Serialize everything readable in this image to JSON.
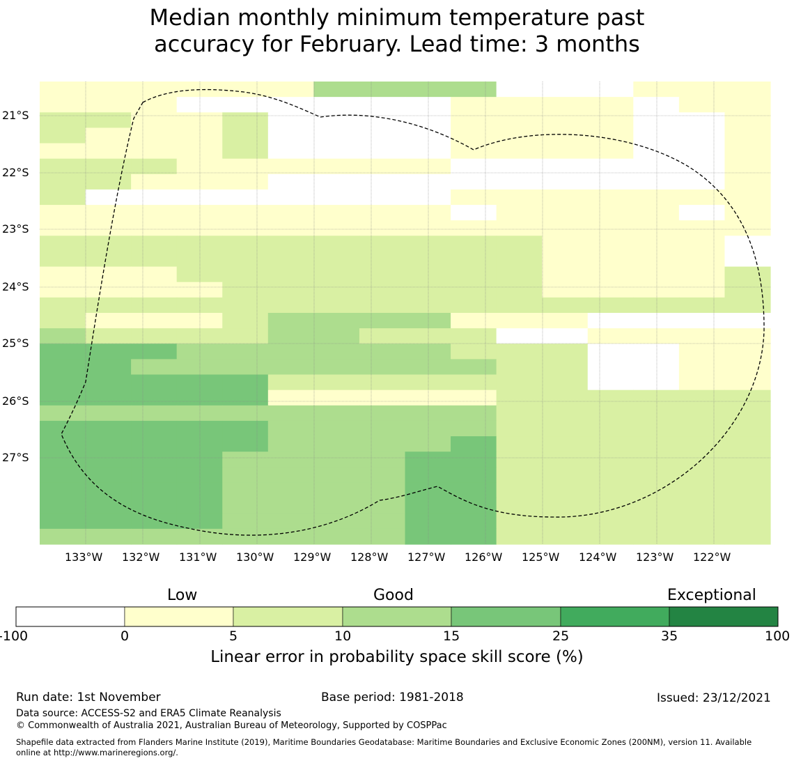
{
  "title_lines": [
    "Median monthly minimum temperature past",
    "accuracy for February. Lead time: 3 months"
  ],
  "map": {
    "lon_labels": [
      "133°W",
      "132°W",
      "131°W",
      "130°W",
      "129°W",
      "128°W",
      "127°W",
      "126°W",
      "125°W",
      "124°W",
      "123°W",
      "122°W"
    ],
    "lat_labels": [
      "21°S",
      "22°S",
      "23°S",
      "24°S",
      "25°S",
      "26°S",
      "27°S"
    ],
    "category_colors": [
      "#ffffff",
      "#ffffcc",
      "#d9f0a3",
      "#addd8e",
      "#78c679",
      "#41ab5d",
      "#238443"
    ],
    "grid_legend": "0=<0, 1=0-5, 2=5-10, 3=10-15, 4=15-25, 5=25-35, 6=35-100",
    "grid_rows": [
      "1111113333000111",
      "1110000001111011",
      "2211200001111001",
      "2111200001111001",
      "1111200001111001",
      "2221111110000001",
      "2211100000000001",
      "2000000001111111",
      "1111111110111101",
      "1111111111111111",
      "2222222222211110",
      "2222222222211110",
      "1112222222211112",
      "1111222222211112",
      "2222222222222222",
      "2111233331110000",
      "3222233222001111",
      "4443333332220011",
      "4433333333220011",
      "4444422222220011",
      "4444411111222222",
      "3333333333222222",
      "4444433333222222",
      "4444433334222222",
      "4444333344222222",
      "4444333344222222",
      "4444333344222222",
      "4444333344222222",
      "4444333344222222",
      "3333333344222222"
    ]
  },
  "colorbar": {
    "categories": [
      "Low",
      "Good",
      "Exceptional"
    ],
    "ticks": [
      "-100",
      "0",
      "5",
      "10",
      "15",
      "25",
      "35",
      "100"
    ],
    "colors": [
      "#ffffff",
      "#ffffcc",
      "#d9f0a3",
      "#addd8e",
      "#78c679",
      "#41ab5d",
      "#238443"
    ],
    "label": "Linear error in probability space skill score (%)"
  },
  "footer": {
    "run_date": "Run date: 1st November",
    "base_period": "Base period: 1981-2018",
    "issued": "Issued: 23/12/2021",
    "data_source": "Data source: ACCESS-S2 and ERA5 Climate Reanalysis",
    "copyright": "© Commonwealth of Australia 2021, Australian Bureau of Meteorology, Supported by COSPPac",
    "shapefile_line1": "Shapefile data extracted from Flanders Marine Institute (2019), Maritime Boundaries Geodatabase: Maritime Boundaries and Exclusive Economic Zones (200NM), version 11. Available",
    "shapefile_line2": "online at http://www.marineregions.org/."
  }
}
